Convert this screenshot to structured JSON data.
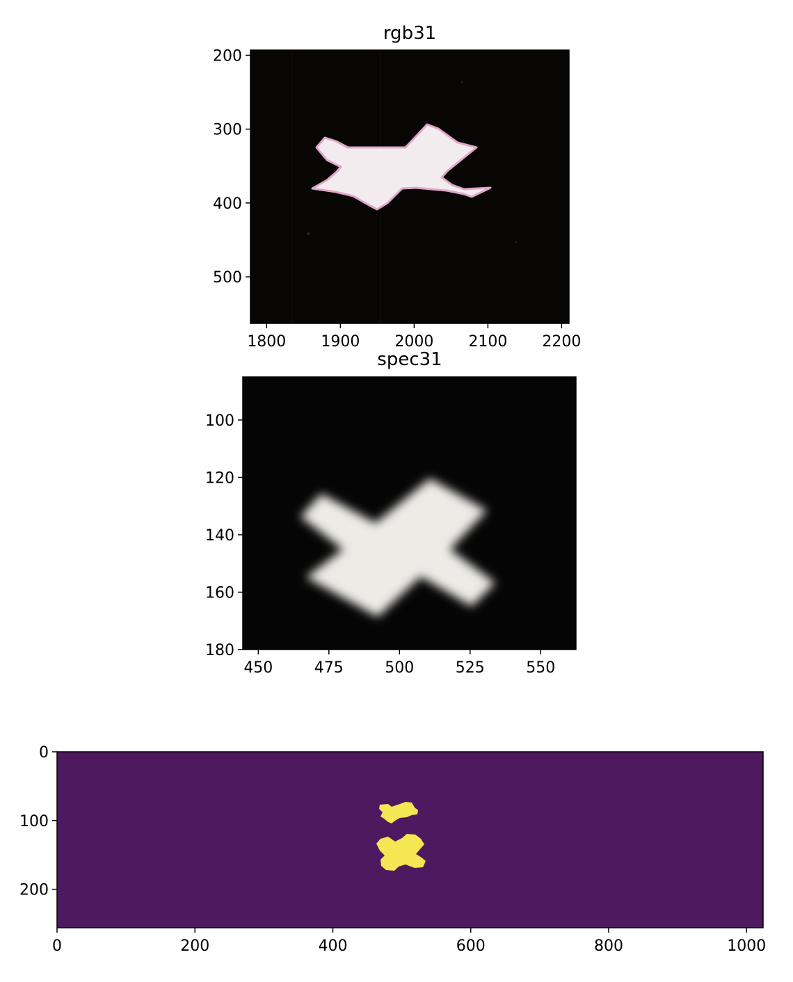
{
  "chart_data": [
    {
      "type": "image",
      "title": "rgb31",
      "xlim": [
        1778,
        2210
      ],
      "ylim": [
        563,
        193
      ],
      "x_ticks": [
        "1800",
        "1900",
        "2000",
        "2100",
        "2200"
      ],
      "y_ticks": [
        "200",
        "300",
        "400",
        "500"
      ],
      "grid": false,
      "colors": {
        "background": "#070605",
        "shape": "#f3ecee",
        "shape_edge": "#e0a6c8"
      }
    },
    {
      "type": "image",
      "title": "spec31",
      "xlim": [
        444.5,
        562.5
      ],
      "ylim": [
        180,
        85
      ],
      "x_ticks": [
        "450",
        "475",
        "500",
        "525",
        "550"
      ],
      "y_ticks": [
        "100",
        "120",
        "140",
        "160",
        "180"
      ],
      "grid": false,
      "colors": {
        "background": "#050505",
        "shape": "#ecebe6"
      }
    },
    {
      "type": "heatmap",
      "title": "",
      "xlim": [
        0,
        1024
      ],
      "ylim": [
        256,
        0
      ],
      "x_ticks": [
        "0",
        "200",
        "400",
        "600",
        "800",
        "1000"
      ],
      "y_ticks": [
        "0",
        "100",
        "200"
      ],
      "grid": false,
      "colors": {
        "background": "#4f195f",
        "mask": "#f5e653"
      }
    }
  ]
}
